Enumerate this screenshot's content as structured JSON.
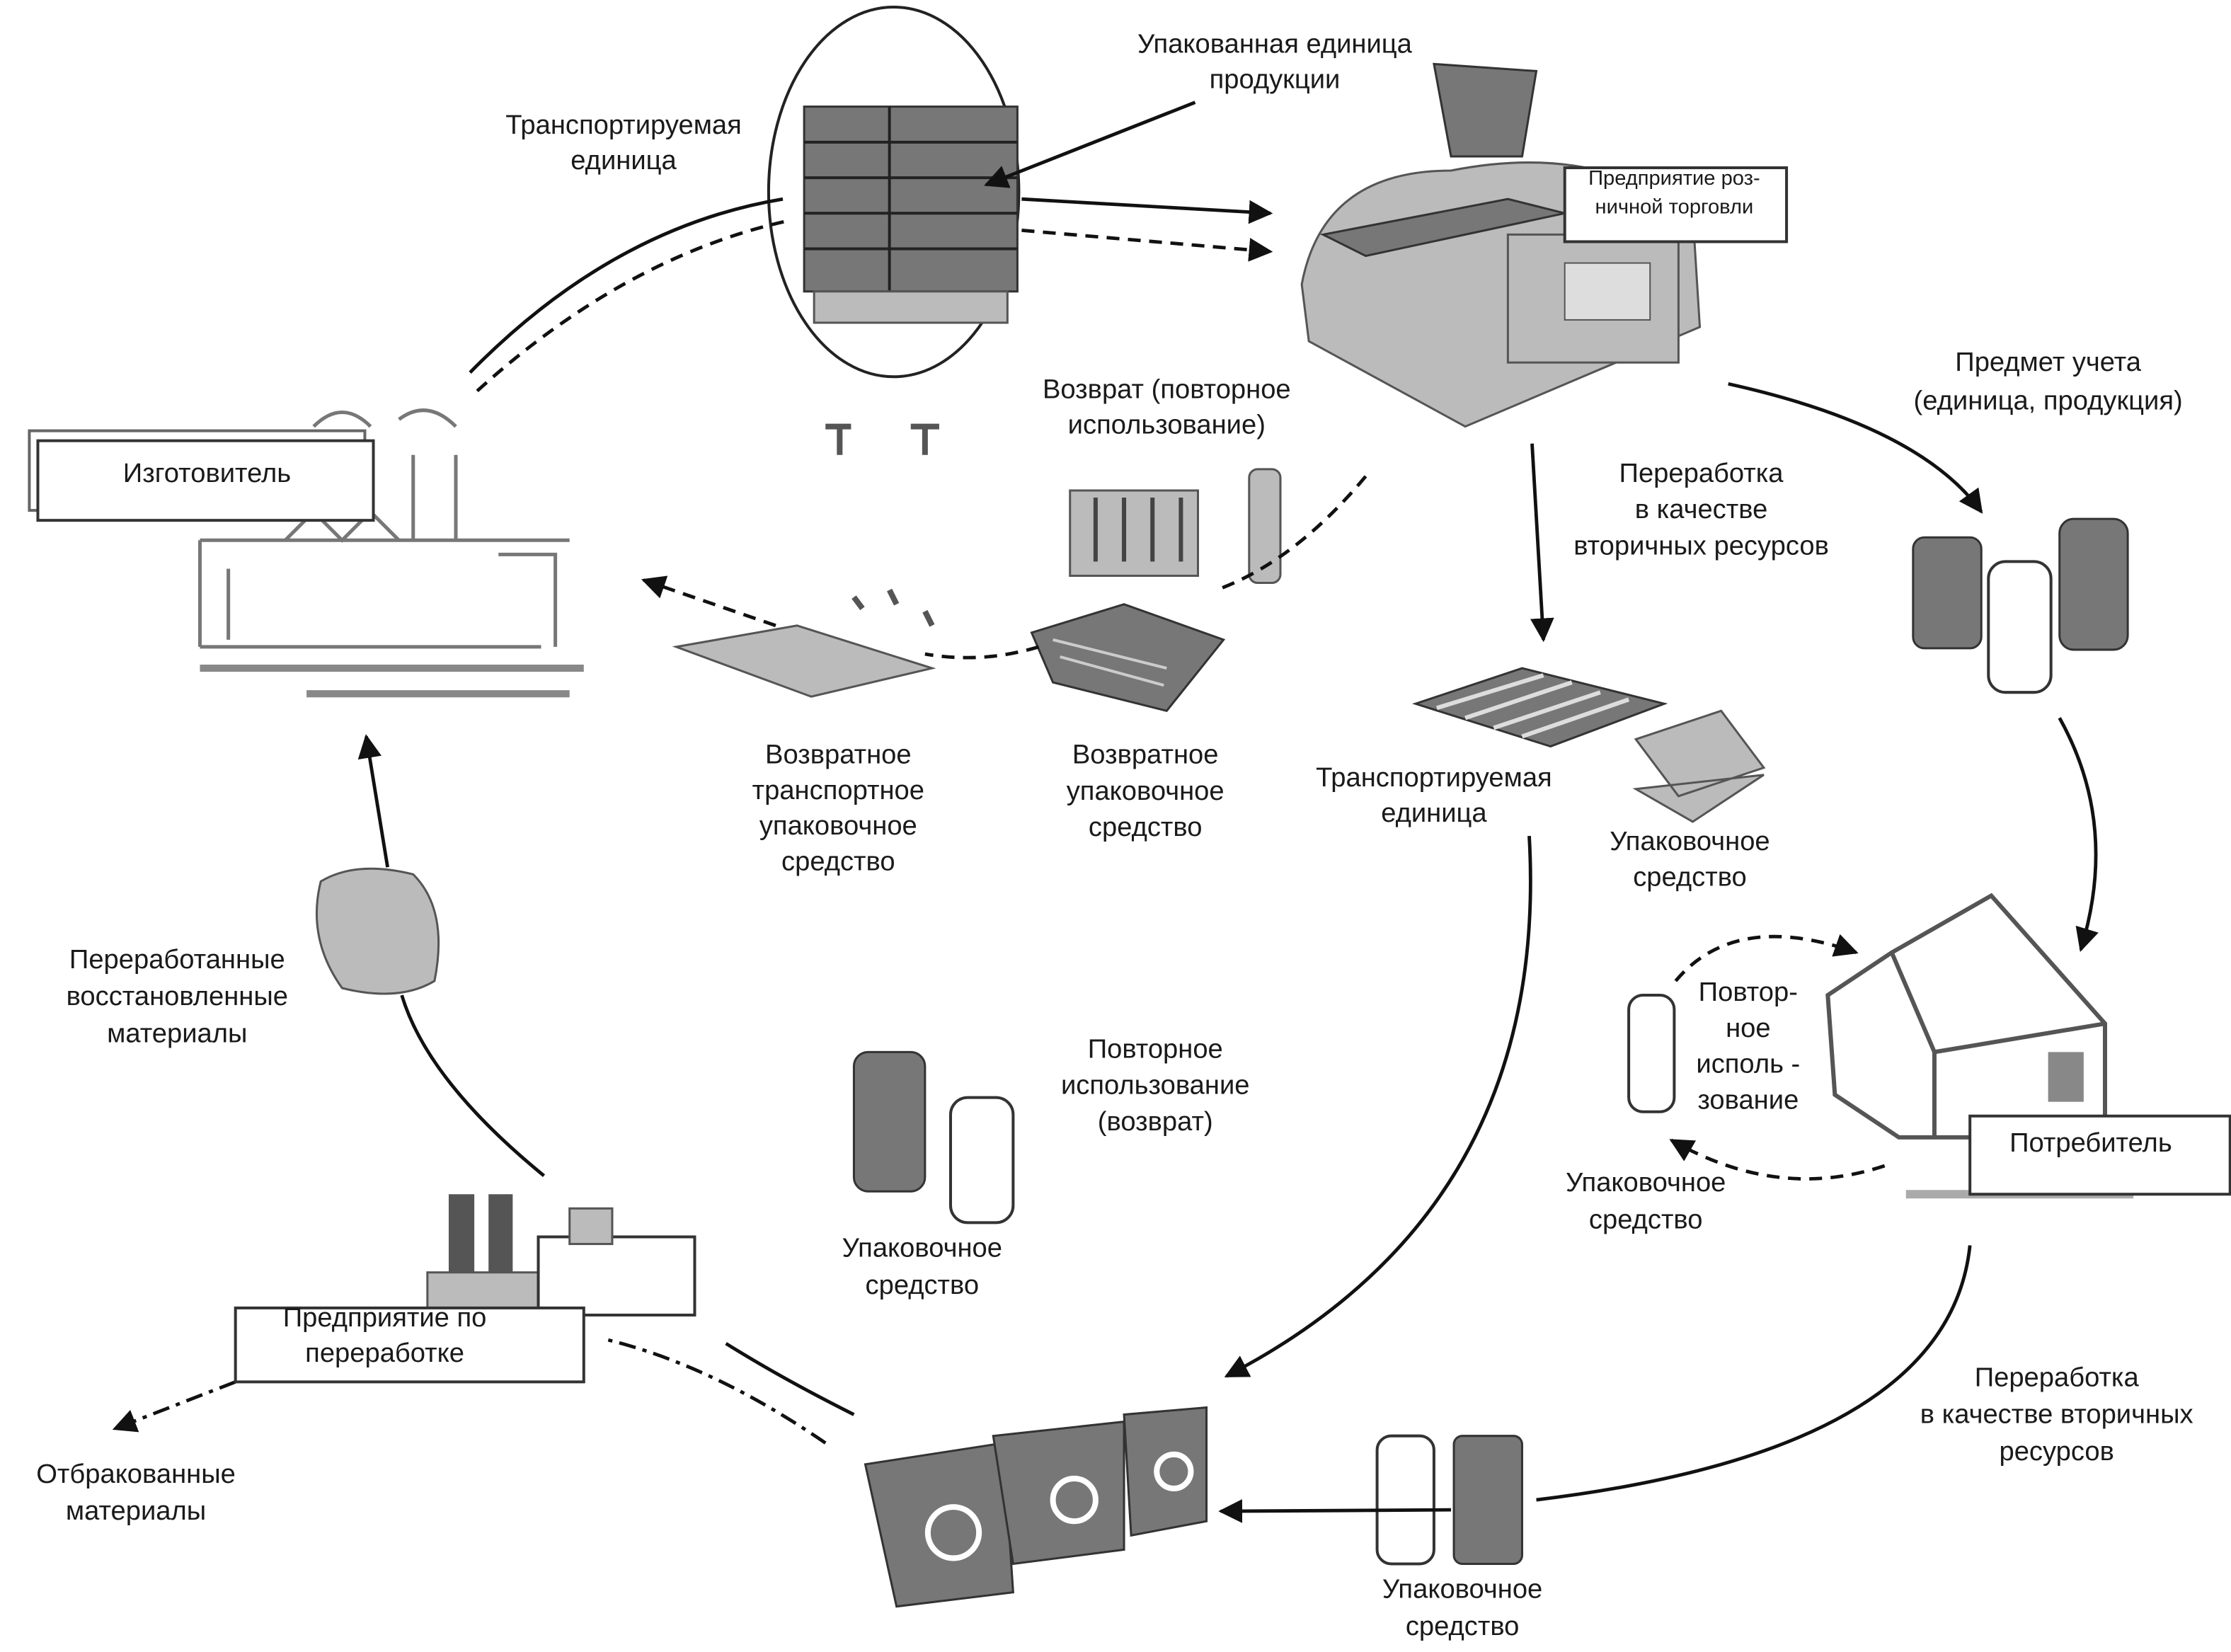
{
  "nodes": [
    {
      "label": [
        "Упакованная единица",
        "продукции"
      ]
    },
    {
      "label": [
        "Транспортируемая",
        "единица"
      ]
    },
    {
      "label": [
        "Предприятие роз-",
        "ничной торговли"
      ]
    },
    {
      "label": [
        "Изготовитель"
      ]
    },
    {
      "label": [
        "Возврат (повторное",
        "использование)"
      ]
    },
    {
      "label": [
        "Предмет учета",
        "(единица, продукция)"
      ]
    },
    {
      "label": [
        "Переработка",
        "в качестве",
        "вторичных ресурсов"
      ]
    },
    {
      "label": [
        "Возвратное",
        "транспортное",
        "упаковочное",
        "средство"
      ]
    },
    {
      "label": [
        "Возвратное",
        "упаковочное",
        "средство"
      ]
    },
    {
      "label": [
        "Транспортируемая",
        "единица"
      ]
    },
    {
      "label": [
        "Упаковочное",
        "средство"
      ]
    },
    {
      "label": [
        "Переработанные",
        "восстановленные",
        "материалы"
      ]
    },
    {
      "label": [
        "Повтор-",
        "ное",
        "исполь -",
        "зование"
      ]
    },
    {
      "label": [
        "Повторное",
        "использование",
        "(возврат)"
      ]
    },
    {
      "label": [
        "Потребитель"
      ]
    },
    {
      "label": [
        "Упаковочное",
        "средство"
      ]
    },
    {
      "label": [
        "Упаковочное",
        "средство"
      ]
    },
    {
      "label": [
        "Предприятие по",
        "переработке"
      ]
    },
    {
      "label": [
        "Переработка",
        "в качестве вторичных",
        "ресурсов"
      ]
    },
    {
      "label": [
        "Отбракованные",
        "материалы"
      ]
    },
    {
      "label": [
        "Упаковочное",
        "средство"
      ]
    }
  ]
}
